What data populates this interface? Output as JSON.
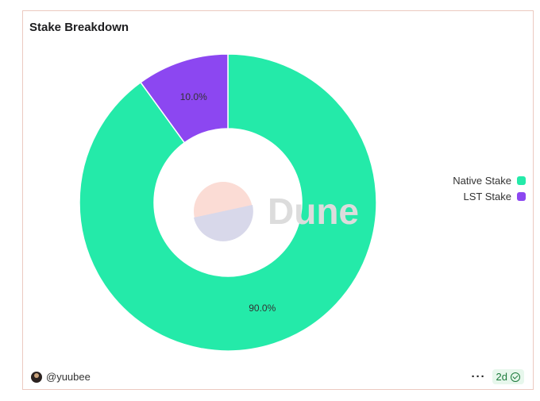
{
  "card": {
    "title": "Stake Breakdown",
    "watermark": "Dune",
    "author": "@yuubee",
    "age_badge": "2d",
    "more_menu": "···"
  },
  "chart_data": {
    "type": "pie",
    "variant": "donut",
    "title": "Stake Breakdown",
    "categories": [
      "Native Stake",
      "LST Stake"
    ],
    "values": [
      90.0,
      10.0
    ],
    "labels": [
      "90.0%",
      "10.0%"
    ],
    "colors": [
      "#24eaa9",
      "#8c47f1"
    ],
    "legend_position": "right"
  }
}
